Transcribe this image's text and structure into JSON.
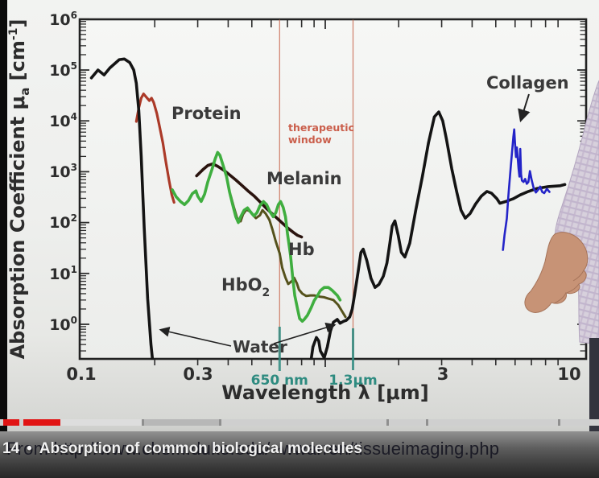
{
  "video": {
    "progress_bar": {
      "played_color": "#e11414",
      "track_color": "#cfcfcf",
      "buffered_color": "#dddddd",
      "track_dim_color": "#b7b7b7",
      "chapter_gap_color": "#8f8f8f"
    },
    "caption_overlay": {
      "slide_number": "14",
      "bullet": "•",
      "title": "Absorption of common biological molecules"
    },
    "slide_source_text": "From http://www.chem.duke.edu/~wwarren/tissueimaging.php"
  },
  "chart": {
    "x_axis": {
      "title": "Wavelength λ [μm]",
      "ticks": [
        "0.1",
        "0.3",
        "3",
        "10"
      ]
    },
    "y_axis": {
      "title_parts": {
        "main": "Absorption Coefficient μ",
        "sub": "a",
        "unit": " [cm",
        "exp": "-1",
        "close": "]"
      },
      "ticks": [
        {
          "base": "10",
          "exp": "6"
        },
        {
          "base": "10",
          "exp": "5"
        },
        {
          "base": "10",
          "exp": "4"
        },
        {
          "base": "10",
          "exp": "3"
        },
        {
          "base": "10",
          "exp": "2"
        },
        {
          "base": "10",
          "exp": "1"
        },
        {
          "base": "10",
          "exp": "0"
        }
      ]
    },
    "labels": {
      "protein": "Protein",
      "melanin": "Melanin",
      "hb": "Hb",
      "hbo2_main": "HbO",
      "hbo2_sub": "2",
      "water": "Water",
      "collagen": "Collagen",
      "therapeutic_line1": "therapeutic",
      "therapeutic_line2": "window"
    }
  },
  "chart_data": {
    "type": "line",
    "title": "Absorption of common biological molecules",
    "xlabel": "Wavelength λ [μm]",
    "ylabel": "Absorption Coefficient μa [cm-1]",
    "x_scale": "log",
    "y_scale": "log",
    "xlim": [
      0.1,
      10
    ],
    "ylim": [
      1,
      1000000
    ],
    "grid": false,
    "annotations": {
      "therapeutic_window": {
        "label": "therapeutic window",
        "range_um": [
          0.65,
          1.3
        ]
      },
      "wavelength_markers": [
        {
          "label": "650 nm",
          "lambda_um": 0.65
        },
        {
          "label": "1.3μm",
          "lambda_um": 1.3
        }
      ]
    },
    "series": [
      {
        "id": "water",
        "name": "Water",
        "color": "#141414",
        "stroke_width": 3.6,
        "points": [
          [
            0.11,
            70000
          ],
          [
            0.117,
            100000
          ],
          [
            0.124,
            80000
          ],
          [
            0.131,
            110000
          ],
          [
            0.143,
            160000
          ],
          [
            0.15,
            165000
          ],
          [
            0.158,
            140000
          ],
          [
            0.164,
            100000
          ],
          [
            0.168,
            55000
          ],
          [
            0.172,
            16000
          ],
          [
            0.176,
            2000
          ],
          [
            0.181,
            80
          ],
          [
            0.187,
            3.2
          ],
          [
            0.193,
            0.4
          ],
          [
            0.198,
            0.12
          ],
          [
            0.25,
            0.03
          ],
          [
            0.8,
            0.05
          ],
          [
            0.876,
            0.21
          ],
          [
            0.89,
            0.36
          ],
          [
            0.92,
            0.55
          ],
          [
            0.94,
            0.47
          ],
          [
            0.955,
            0.3
          ],
          [
            0.99,
            0.22
          ],
          [
            1.02,
            0.36
          ],
          [
            1.05,
            0.73
          ],
          [
            1.08,
            1.1
          ],
          [
            1.12,
            1.25
          ],
          [
            1.15,
            1.05
          ],
          [
            1.19,
            1.15
          ],
          [
            1.22,
            1.2
          ],
          [
            1.26,
            1.4
          ],
          [
            1.29,
            2.0
          ],
          [
            1.32,
            3.9
          ],
          [
            1.36,
            10
          ],
          [
            1.4,
            26
          ],
          [
            1.43,
            30
          ],
          [
            1.48,
            18
          ],
          [
            1.54,
            8
          ],
          [
            1.6,
            5.3
          ],
          [
            1.66,
            6.1
          ],
          [
            1.73,
            8.8
          ],
          [
            1.79,
            16
          ],
          [
            1.84,
            39
          ],
          [
            1.88,
            85
          ],
          [
            1.93,
            108
          ],
          [
            1.99,
            56
          ],
          [
            2.05,
            26
          ],
          [
            2.12,
            21
          ],
          [
            2.22,
            39
          ],
          [
            2.35,
            175
          ],
          [
            2.5,
            800
          ],
          [
            2.65,
            3700
          ],
          [
            2.8,
            12000
          ],
          [
            2.92,
            15000
          ],
          [
            3.03,
            10000
          ],
          [
            3.14,
            4300
          ],
          [
            3.3,
            1150
          ],
          [
            3.46,
            400
          ],
          [
            3.6,
            175
          ],
          [
            3.75,
            122
          ],
          [
            3.92,
            150
          ],
          [
            4.13,
            230
          ],
          [
            4.36,
            330
          ],
          [
            4.6,
            410
          ],
          [
            4.8,
            380
          ],
          [
            5.05,
            295
          ],
          [
            5.2,
            240
          ],
          [
            5.5,
            260
          ],
          [
            5.9,
            295
          ],
          [
            6.3,
            350
          ],
          [
            6.8,
            410
          ],
          [
            7.4,
            470
          ],
          [
            8.2,
            510
          ],
          [
            9.2,
            530
          ],
          [
            9.6,
            560
          ]
        ]
      },
      {
        "id": "protein",
        "name": "Protein",
        "color": "#ab3a28",
        "stroke_width": 3.2,
        "points": [
          [
            0.168,
            9700
          ],
          [
            0.172,
            18000
          ],
          [
            0.176,
            28000
          ],
          [
            0.18,
            34000
          ],
          [
            0.185,
            29000
          ],
          [
            0.19,
            25000
          ],
          [
            0.194,
            28000
          ],
          [
            0.198,
            23000
          ],
          [
            0.204,
            14000
          ],
          [
            0.209,
            8000
          ],
          [
            0.216,
            3700
          ],
          [
            0.222,
            1600
          ],
          [
            0.229,
            670
          ],
          [
            0.235,
            350
          ],
          [
            0.24,
            250
          ]
        ]
      },
      {
        "id": "melanin",
        "name": "Melanin",
        "color": "#2a130e",
        "stroke_width": 3.6,
        "points": [
          [
            0.297,
            830
          ],
          [
            0.315,
            1100
          ],
          [
            0.33,
            1330
          ],
          [
            0.346,
            1430
          ],
          [
            0.362,
            1280
          ],
          [
            0.383,
            1080
          ],
          [
            0.403,
            890
          ],
          [
            0.43,
            690
          ],
          [
            0.455,
            540
          ],
          [
            0.482,
            420
          ],
          [
            0.512,
            330
          ],
          [
            0.545,
            245
          ],
          [
            0.577,
            185
          ],
          [
            0.615,
            140
          ],
          [
            0.655,
            106
          ],
          [
            0.7,
            79
          ],
          [
            0.74,
            64
          ],
          [
            0.77,
            56
          ],
          [
            0.8,
            52
          ]
        ]
      },
      {
        "id": "hb",
        "name": "Hb",
        "color": "#55521c",
        "stroke_width": 3.0,
        "points": [
          [
            0.41,
            330
          ],
          [
            0.422,
            200
          ],
          [
            0.435,
            122
          ],
          [
            0.45,
            106
          ],
          [
            0.46,
            145
          ],
          [
            0.475,
            180
          ],
          [
            0.49,
            168
          ],
          [
            0.506,
            140
          ],
          [
            0.52,
            122
          ],
          [
            0.54,
            140
          ],
          [
            0.553,
            175
          ],
          [
            0.57,
            150
          ],
          [
            0.59,
            113
          ],
          [
            0.607,
            74
          ],
          [
            0.627,
            42
          ],
          [
            0.65,
            25
          ],
          [
            0.666,
            13
          ],
          [
            0.687,
            8.2
          ],
          [
            0.705,
            6.2
          ],
          [
            0.73,
            7.1
          ],
          [
            0.745,
            8.2
          ],
          [
            0.765,
            6.4
          ],
          [
            0.78,
            4.8
          ],
          [
            0.805,
            4.0
          ],
          [
            0.835,
            3.6
          ],
          [
            0.868,
            3.7
          ],
          [
            0.9,
            3.7
          ],
          [
            0.945,
            3.5
          ],
          [
            0.99,
            3.4
          ],
          [
            1.03,
            3.2
          ],
          [
            1.08,
            3.0
          ],
          [
            1.13,
            2.4
          ],
          [
            1.18,
            1.7
          ],
          [
            1.21,
            1.4
          ]
        ]
      },
      {
        "id": "hbo2",
        "name": "HbO2",
        "color": "#3fae3f",
        "stroke_width": 3.6,
        "points": [
          [
            0.236,
            440
          ],
          [
            0.245,
            320
          ],
          [
            0.255,
            260
          ],
          [
            0.265,
            225
          ],
          [
            0.275,
            270
          ],
          [
            0.285,
            370
          ],
          [
            0.295,
            420
          ],
          [
            0.3,
            330
          ],
          [
            0.31,
            260
          ],
          [
            0.32,
            360
          ],
          [
            0.33,
            630
          ],
          [
            0.343,
            1100
          ],
          [
            0.354,
            1800
          ],
          [
            0.362,
            2400
          ],
          [
            0.37,
            2100
          ],
          [
            0.38,
            1400
          ],
          [
            0.394,
            800
          ],
          [
            0.405,
            400
          ],
          [
            0.42,
            200
          ],
          [
            0.43,
            130
          ],
          [
            0.44,
            100
          ],
          [
            0.45,
            130
          ],
          [
            0.465,
            175
          ],
          [
            0.48,
            195
          ],
          [
            0.495,
            160
          ],
          [
            0.51,
            135
          ],
          [
            0.525,
            157
          ],
          [
            0.54,
            215
          ],
          [
            0.558,
            260
          ],
          [
            0.575,
            225
          ],
          [
            0.593,
            165
          ],
          [
            0.612,
            130
          ],
          [
            0.627,
            157
          ],
          [
            0.642,
            225
          ],
          [
            0.656,
            260
          ],
          [
            0.672,
            200
          ],
          [
            0.687,
            130
          ],
          [
            0.7,
            60
          ],
          [
            0.72,
            23
          ],
          [
            0.735,
            8.5
          ],
          [
            0.75,
            3.7
          ],
          [
            0.77,
            2.0
          ],
          [
            0.785,
            1.3
          ],
          [
            0.805,
            1.15
          ],
          [
            0.82,
            1.25
          ],
          [
            0.845,
            1.5
          ],
          [
            0.875,
            2.1
          ],
          [
            0.9,
            2.9
          ],
          [
            0.93,
            3.7
          ],
          [
            0.955,
            4.6
          ],
          [
            0.99,
            5.3
          ],
          [
            1.03,
            5.3
          ],
          [
            1.07,
            4.6
          ],
          [
            1.12,
            3.7
          ],
          [
            1.15,
            3.0
          ]
        ]
      },
      {
        "id": "collagen",
        "name": "Collagen",
        "color": "#2424c8",
        "stroke_width": 2.6,
        "points": [
          [
            5.35,
            29
          ],
          [
            5.43,
            56
          ],
          [
            5.55,
            120
          ],
          [
            5.63,
            330
          ],
          [
            5.75,
            1150
          ],
          [
            5.9,
            4800
          ],
          [
            5.95,
            6800
          ],
          [
            6.0,
            3350
          ],
          [
            6.05,
            1950
          ],
          [
            6.1,
            3000
          ],
          [
            6.2,
            1150
          ],
          [
            6.25,
            800
          ],
          [
            6.3,
            2800
          ],
          [
            6.35,
            890
          ],
          [
            6.4,
            670
          ],
          [
            6.5,
            630
          ],
          [
            6.6,
            720
          ],
          [
            6.7,
            580
          ],
          [
            6.8,
            630
          ],
          [
            6.9,
            1030
          ],
          [
            7.0,
            720
          ],
          [
            7.15,
            470
          ],
          [
            7.3,
            390
          ],
          [
            7.45,
            440
          ],
          [
            7.6,
            510
          ],
          [
            7.75,
            400
          ],
          [
            7.9,
            380
          ],
          [
            8.1,
            460
          ],
          [
            8.3,
            400
          ]
        ]
      }
    ]
  }
}
